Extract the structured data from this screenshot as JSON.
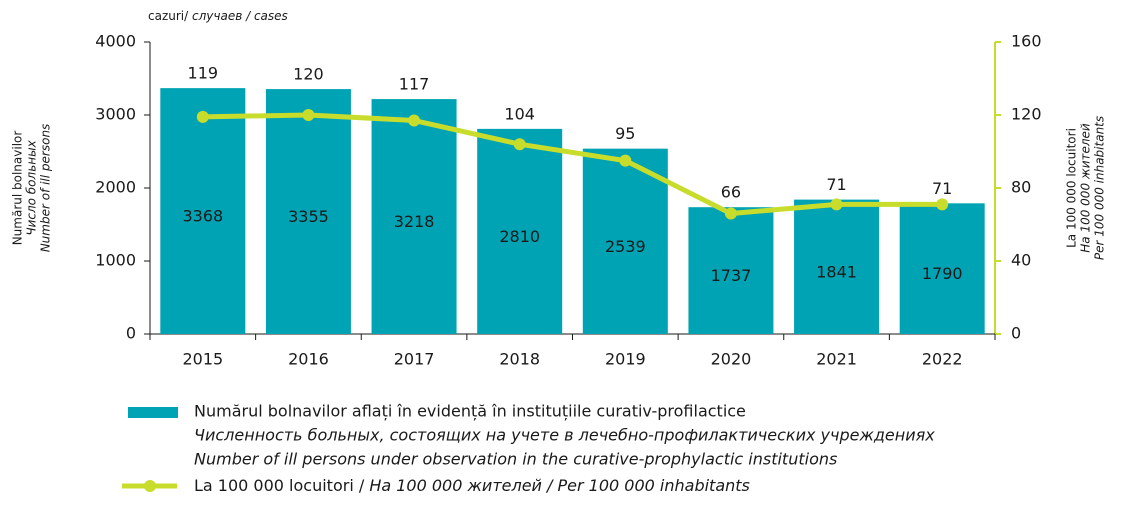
{
  "chart_data": {
    "type": "bar_line",
    "unit_label": [
      "cazuri/",
      "случаев / cases"
    ],
    "y_label": [
      "Numărul bolnavilor",
      "Число больных",
      "Number of ill persons"
    ],
    "y2_label": [
      "La 100 000 locuitori",
      "На 100 000 жителей",
      "Per 100 000 inhabitants"
    ],
    "categories": [
      "2015",
      "2016",
      "2017",
      "2018",
      "2019",
      "2020",
      "2021",
      "2022"
    ],
    "ylim": [
      0,
      4000
    ],
    "yticks": [
      0,
      1000,
      2000,
      3000,
      4000
    ],
    "y2lim": [
      0,
      160
    ],
    "y2ticks": [
      0,
      40,
      80,
      120,
      160
    ],
    "series": [
      {
        "name": [
          "Numărul bolnavilor aflați în evidență în instituțiile curativ-profilactice",
          "Численность больных, состоящих на учете в лечебно-профилактических учреждениях",
          "Number of ill persons under observation in the curative-prophylactic institutions"
        ],
        "type": "bar",
        "color": "#00a3b4",
        "values": [
          3368,
          3355,
          3218,
          2810,
          2539,
          1737,
          1841,
          1790
        ]
      },
      {
        "name": [
          "La 100 000 locuitori / ",
          "На 100 000 жителей / Per 100 000 inhabitants"
        ],
        "type": "line",
        "axis": "y2",
        "color": "#c8dc2c",
        "values": [
          119,
          120,
          117,
          104,
          95,
          66,
          71,
          71
        ]
      }
    ]
  }
}
